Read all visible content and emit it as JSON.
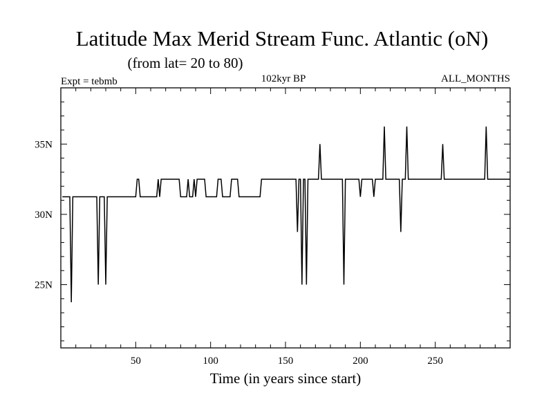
{
  "chart_data": {
    "type": "line",
    "title": "Latitude Max Merid Stream Func. Atlantic (oN)",
    "subtitle": "(from lat= 20 to 80)",
    "left_label": "Expt = tebmb",
    "center_label": "102kyr BP",
    "right_label": "ALL_MONTHS",
    "xlabel": "Time (in years since start)",
    "ylabel": "",
    "xlim": [
      0,
      300
    ],
    "ylim": [
      20.5,
      39
    ],
    "xticks": [
      50,
      100,
      150,
      200,
      250
    ],
    "xtick_labels": [
      "50",
      "100",
      "150",
      "200",
      "250"
    ],
    "yticks": [
      25,
      30,
      35
    ],
    "ytick_labels": [
      "25N",
      "30N",
      "35N"
    ],
    "series": [
      {
        "name": "Latitude Max Merid Stream Func.",
        "color": "#000000",
        "points": [
          [
            1,
            31.25
          ],
          [
            6,
            31.25
          ],
          [
            7,
            23.75
          ],
          [
            8,
            31.25
          ],
          [
            24,
            31.25
          ],
          [
            25,
            25
          ],
          [
            26,
            31.25
          ],
          [
            29,
            31.25
          ],
          [
            30,
            25
          ],
          [
            31,
            31.25
          ],
          [
            50,
            31.25
          ],
          [
            51,
            32.5
          ],
          [
            52,
            32.5
          ],
          [
            53,
            31.25
          ],
          [
            64,
            31.25
          ],
          [
            65,
            32.5
          ],
          [
            66,
            31.25
          ],
          [
            67,
            32.5
          ],
          [
            79,
            32.5
          ],
          [
            80,
            31.25
          ],
          [
            84,
            31.25
          ],
          [
            85,
            32.5
          ],
          [
            86,
            31.25
          ],
          [
            88,
            31.25
          ],
          [
            89,
            32.5
          ],
          [
            90,
            31.25
          ],
          [
            91,
            32.5
          ],
          [
            96,
            32.5
          ],
          [
            97,
            31.25
          ],
          [
            104,
            31.25
          ],
          [
            105,
            32.5
          ],
          [
            107,
            32.5
          ],
          [
            108,
            31.25
          ],
          [
            113,
            31.25
          ],
          [
            114,
            32.5
          ],
          [
            118,
            32.5
          ],
          [
            119,
            31.25
          ],
          [
            133,
            31.25
          ],
          [
            134,
            32.5
          ],
          [
            157,
            32.5
          ],
          [
            158,
            28.75
          ],
          [
            159,
            32.5
          ],
          [
            160,
            32.5
          ],
          [
            161,
            25
          ],
          [
            162,
            32.5
          ],
          [
            163,
            32.5
          ],
          [
            164,
            25
          ],
          [
            165,
            32.5
          ],
          [
            172,
            32.5
          ],
          [
            173,
            35
          ],
          [
            174,
            32.5
          ],
          [
            188,
            32.5
          ],
          [
            189,
            25
          ],
          [
            190,
            32.5
          ],
          [
            199,
            32.5
          ],
          [
            200,
            31.25
          ],
          [
            201,
            32.5
          ],
          [
            208,
            32.5
          ],
          [
            209,
            31.25
          ],
          [
            210,
            32.5
          ],
          [
            215,
            32.5
          ],
          [
            216,
            36.25
          ],
          [
            217,
            32.5
          ],
          [
            226,
            32.5
          ],
          [
            227,
            28.75
          ],
          [
            228,
            32.5
          ],
          [
            230,
            32.5
          ],
          [
            231,
            36.25
          ],
          [
            232,
            32.5
          ],
          [
            254,
            32.5
          ],
          [
            255,
            35
          ],
          [
            256,
            32.5
          ],
          [
            283,
            32.5
          ],
          [
            284,
            36.25
          ],
          [
            285,
            32.5
          ],
          [
            300,
            32.5
          ]
        ]
      }
    ]
  }
}
